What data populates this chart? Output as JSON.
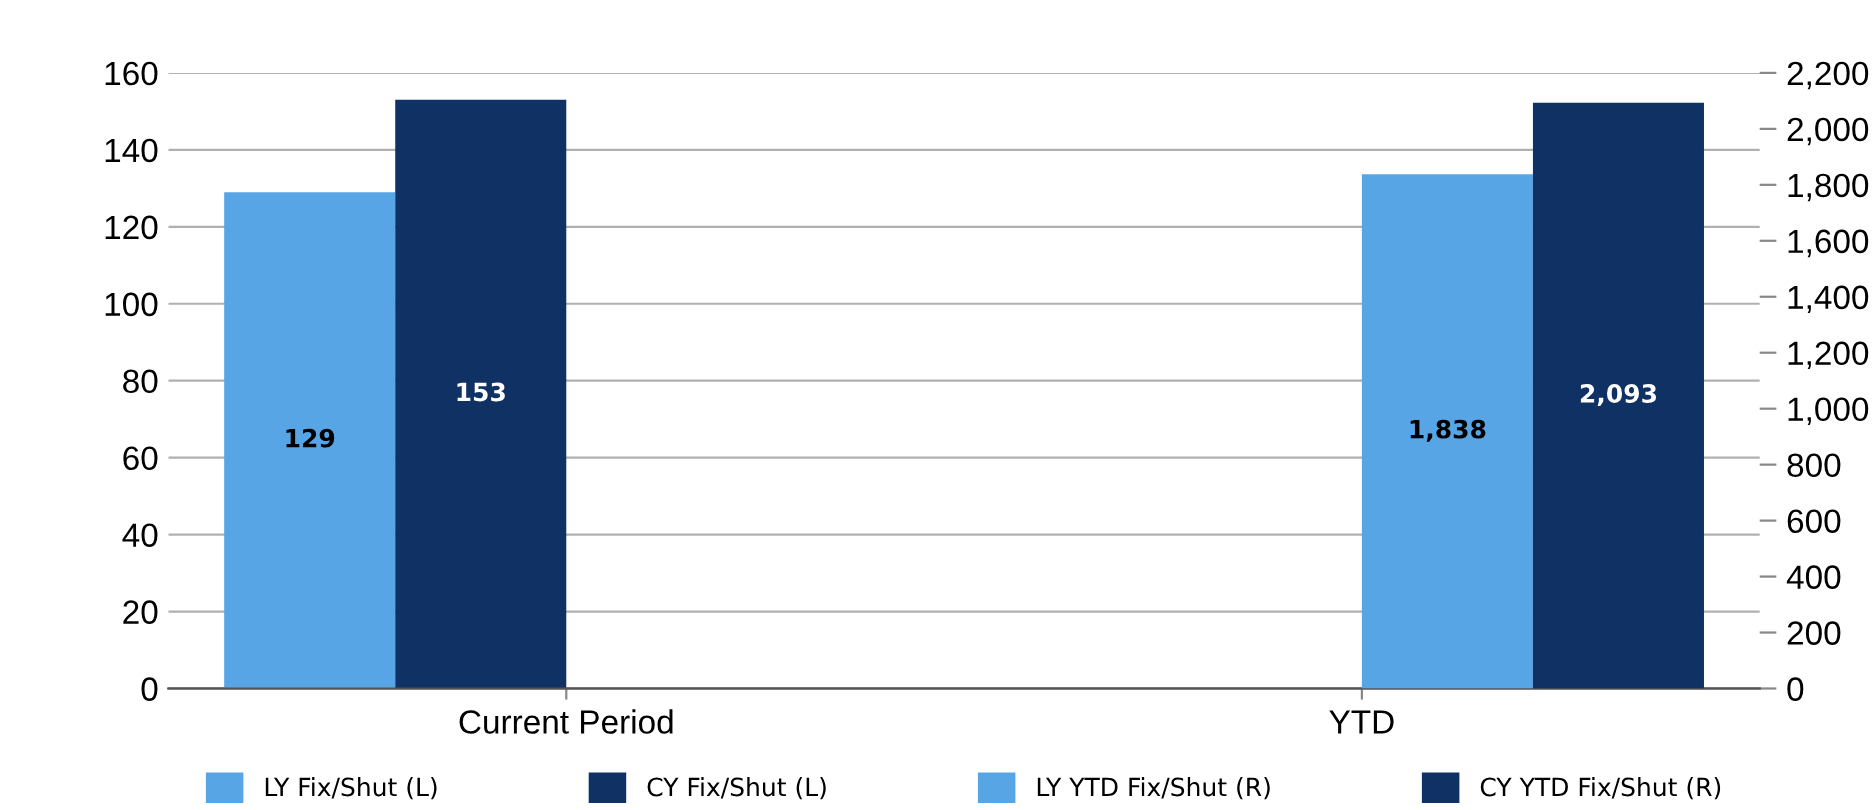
{
  "chart_data": {
    "type": "bar",
    "categories": [
      "Current Period",
      "YTD"
    ],
    "series": [
      {
        "name": "LY Fix/Shut (L)",
        "color": "#58a5e6",
        "values": [
          129,
          null
        ],
        "value_labels": [
          "129",
          null
        ]
      },
      {
        "name": "CY Fix/Shut (L)",
        "color": "#0f3164",
        "values": [
          153,
          null
        ],
        "value_labels": [
          "153",
          null
        ]
      },
      {
        "name": "LY YTD Fix/Shut (R)",
        "color": "#58a5e6",
        "values": [
          null,
          1838
        ],
        "axis": "y2",
        "value_labels": [
          null,
          "1,838"
        ]
      },
      {
        "name": "CY YTD Fix/Shut (R)",
        "color": "#0f3164",
        "values": [
          null,
          2093
        ],
        "axis": "y2",
        "value_labels": [
          null,
          "2,093"
        ]
      }
    ],
    "ylim": [
      0,
      160
    ],
    "yticks": [
      0,
      20,
      40,
      60,
      80,
      100,
      120,
      140,
      160
    ],
    "y2lim": [
      0,
      2200
    ],
    "y2ticks": [
      0,
      {
        "value": 200,
        "label": "200"
      },
      {
        "value": 400,
        "label": "400"
      },
      {
        "value": 600,
        "label": "600"
      },
      {
        "value": 800,
        "label": "800"
      },
      {
        "value": 1000,
        "label": "1,000"
      },
      {
        "value": 1200,
        "label": "1,200"
      },
      {
        "value": 1400,
        "label": "1,400"
      },
      {
        "value": 1600,
        "label": "1,600"
      },
      {
        "value": 1800,
        "label": "1,800"
      },
      {
        "value": 2000,
        "label": "2,000"
      },
      {
        "value": 2200,
        "label": "2,200"
      }
    ],
    "grid": "y",
    "legend": "bottom"
  }
}
